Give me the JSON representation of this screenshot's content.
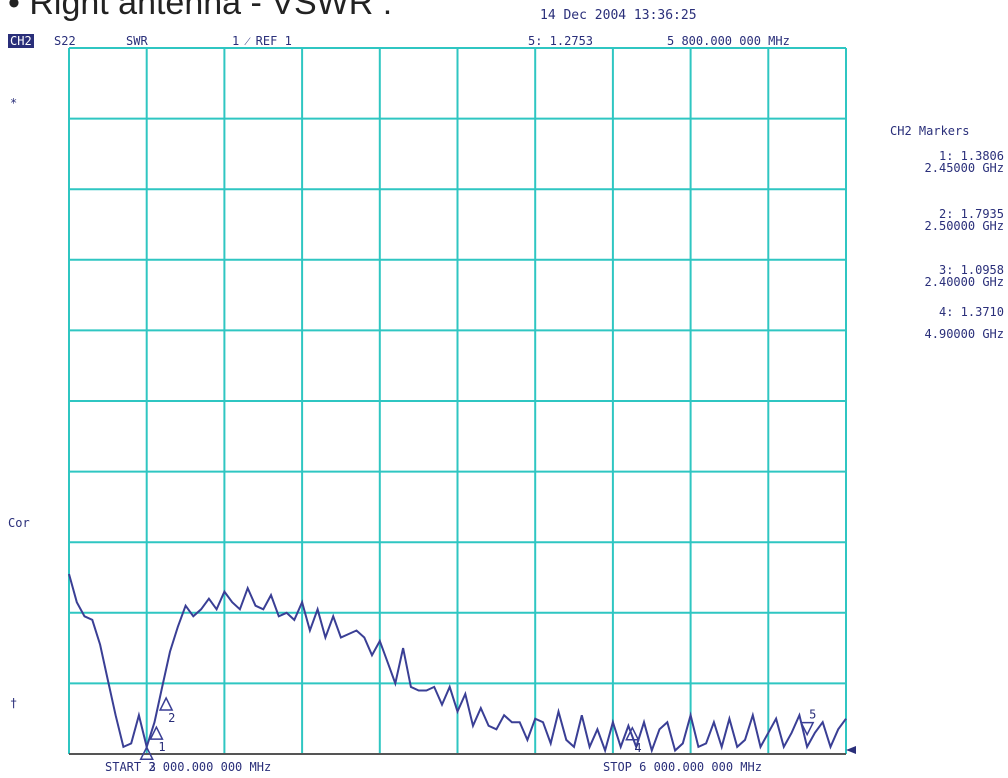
{
  "header": {
    "title": "• Right antenna - VSWR :",
    "datetime": "14 Dec 2004   13:36:25",
    "channel": "CH2",
    "param": "S22",
    "format": "SWR",
    "scale": "1  ⁄ REF 1",
    "marker_readout": "5: 1.2753",
    "marker_freq": "5 800.000 000 MHz"
  },
  "side_left": {
    "star": "*",
    "cor": "Cor",
    "dagger": "†"
  },
  "markers_panel": {
    "title": "CH2 Markers",
    "items": [
      {
        "value": "1: 1.3806",
        "freq": "2.45000 GHz"
      },
      {
        "value": "2: 1.7935",
        "freq": "2.50000 GHz"
      },
      {
        "value": "3: 1.0958",
        "freq": "2.40000 GHz"
      },
      {
        "value": "4: 1.3710",
        "freq": "4.90000 GHz"
      }
    ]
  },
  "footer": {
    "start": "START 2 000.000 000 MHz",
    "stop": "STOP 6 000.000 000 MHz"
  },
  "colors": {
    "grid": "#2fc6c2",
    "trace": "#3a3f95",
    "text": "#2a2f7a"
  },
  "chart_data": {
    "type": "line",
    "title": "",
    "xlabel": "",
    "ylabel": "",
    "xlim": [
      2000,
      6000
    ],
    "ylim": [
      1,
      11
    ],
    "x_unit": "MHz",
    "grid": true,
    "series": [
      {
        "x": [
          2000,
          2040,
          2080,
          2120,
          2160,
          2200,
          2240,
          2280,
          2320,
          2360,
          2400,
          2440,
          2480,
          2520,
          2560,
          2600,
          2640,
          2680,
          2720,
          2760,
          2800,
          2840,
          2880,
          2920,
          2960,
          3000,
          3040,
          3080,
          3120,
          3160,
          3200,
          3240,
          3280,
          3320,
          3360,
          3400,
          3440,
          3480,
          3520,
          3560,
          3600,
          3640,
          3680,
          3720,
          3760,
          3800,
          3840,
          3880,
          3920,
          3960,
          4000,
          4040,
          4080,
          4120,
          4160,
          4200,
          4240,
          4280,
          4320,
          4360,
          4400,
          4440,
          4480,
          4520,
          4560,
          4600,
          4640,
          4680,
          4720,
          4760,
          4800,
          4840,
          4880,
          4920,
          4960,
          5000,
          5040,
          5080,
          5120,
          5160,
          5200,
          5240,
          5280,
          5320,
          5360,
          5400,
          5440,
          5480,
          5520,
          5560,
          5600,
          5640,
          5680,
          5720,
          5760,
          5800,
          5840,
          5880,
          5920,
          5960,
          6000
        ],
        "values": [
          3.55,
          3.15,
          2.95,
          2.9,
          2.55,
          2.05,
          1.55,
          1.1,
          1.15,
          1.55,
          1.1,
          1.45,
          1.95,
          2.45,
          2.8,
          3.1,
          2.95,
          3.05,
          3.2,
          3.05,
          3.3,
          3.15,
          3.05,
          3.35,
          3.1,
          3.05,
          3.25,
          2.95,
          3.0,
          2.9,
          3.15,
          2.75,
          3.05,
          2.65,
          2.95,
          2.65,
          2.7,
          2.75,
          2.65,
          2.4,
          2.6,
          2.3,
          2.0,
          2.5,
          1.95,
          1.9,
          1.9,
          1.95,
          1.7,
          1.95,
          1.6,
          1.85,
          1.4,
          1.65,
          1.4,
          1.35,
          1.55,
          1.45,
          1.45,
          1.2,
          1.5,
          1.45,
          1.15,
          1.6,
          1.2,
          1.1,
          1.55,
          1.1,
          1.35,
          1.05,
          1.45,
          1.1,
          1.4,
          1.1,
          1.45,
          1.05,
          1.35,
          1.45,
          1.05,
          1.15,
          1.55,
          1.1,
          1.15,
          1.45,
          1.1,
          1.5,
          1.1,
          1.2,
          1.55,
          1.1,
          1.3,
          1.5,
          1.1,
          1.3,
          1.55,
          1.1,
          1.3,
          1.45,
          1.1,
          1.35,
          1.5
        ]
      }
    ],
    "markers": [
      {
        "label": "1",
        "x": 2450,
        "y": 1.3806
      },
      {
        "label": "2",
        "x": 2500,
        "y": 1.7935
      },
      {
        "label": "3",
        "x": 2400,
        "y": 1.0958
      },
      {
        "label": "4",
        "x": 4900,
        "y": 1.371
      },
      {
        "label": "5",
        "x": 5800,
        "y": 1.2753
      }
    ]
  }
}
